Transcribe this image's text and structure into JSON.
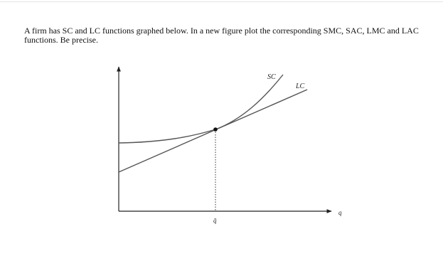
{
  "question": "A firm has SC and LC functions graphed below. In a new figure plot the corresponding SMC, SAC, LMC and LAC functions. Be precise.",
  "diagram": {
    "sc_label": "SC",
    "lc_label": "LC",
    "x_axis_label": "q",
    "tick_label": "q̄"
  }
}
